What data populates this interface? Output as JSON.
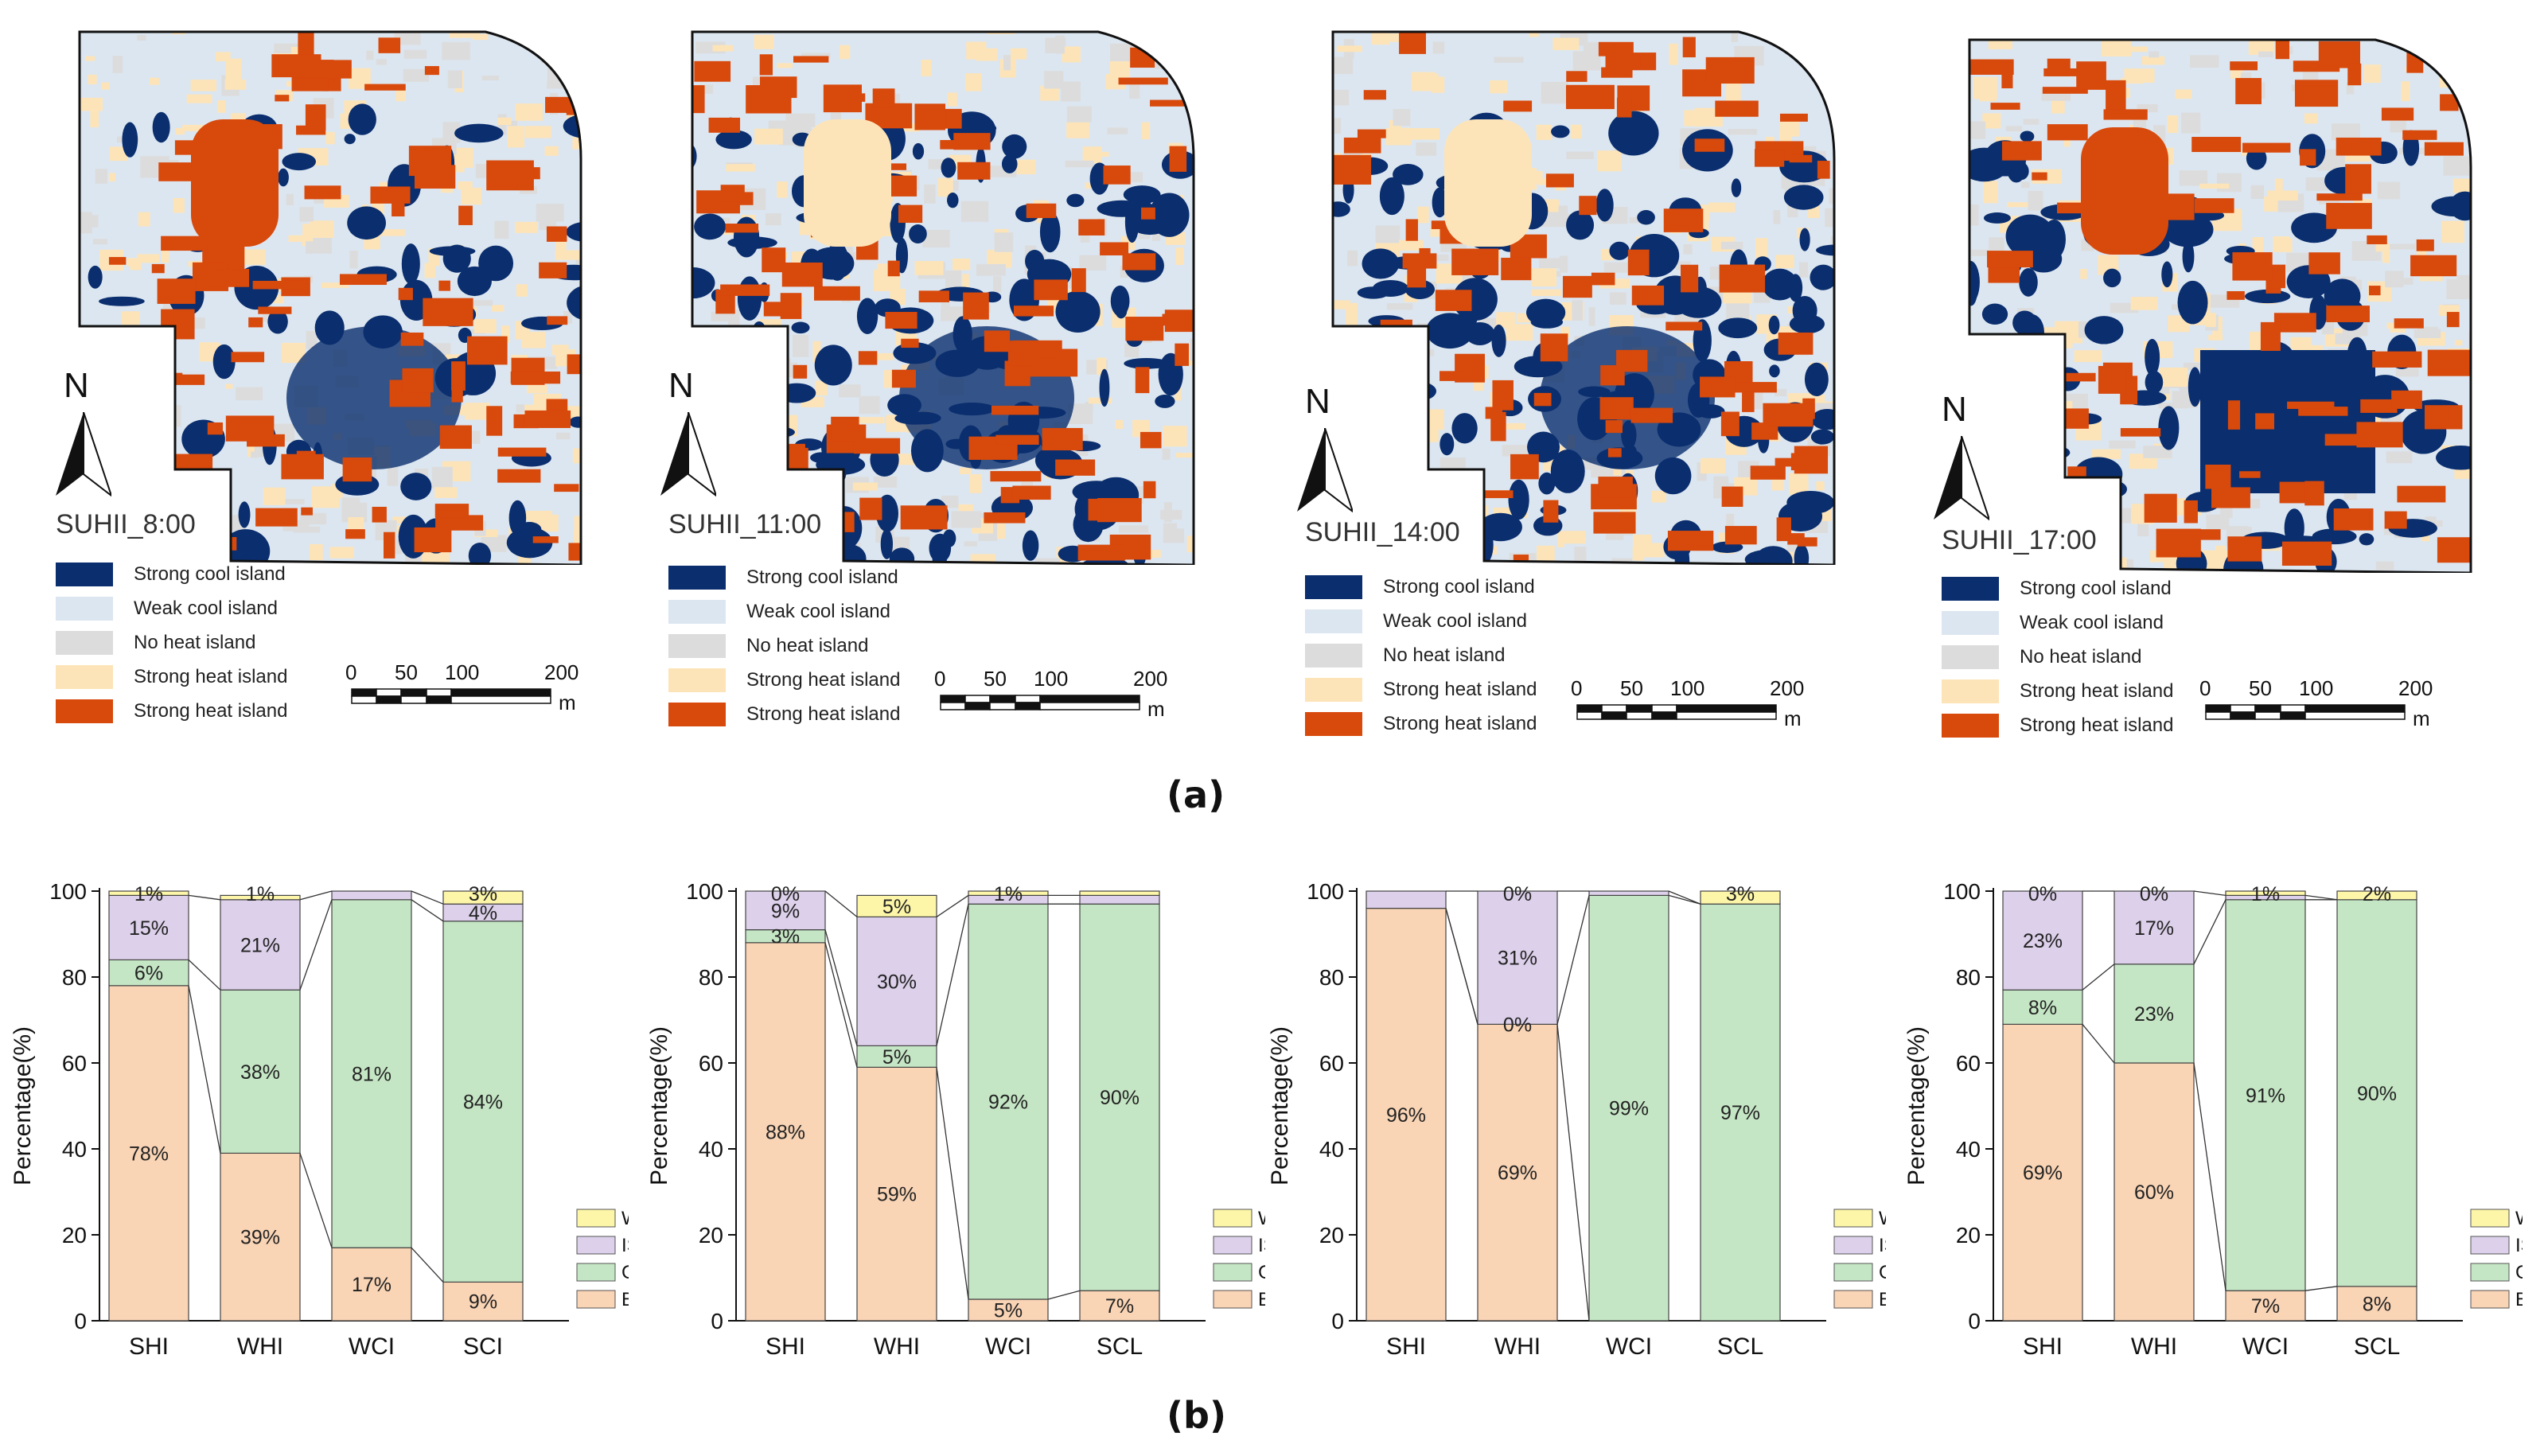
{
  "maps": [
    {
      "id": "m1",
      "title": "SUHII_8:00"
    },
    {
      "id": "m2",
      "title": "SUHII_11:00"
    },
    {
      "id": "m3",
      "title": "SUHII_14:00"
    },
    {
      "id": "m4",
      "title": "SUHII_17:00"
    }
  ],
  "map_legend": [
    {
      "label": "Strong cool island",
      "color": "#0a2e6e"
    },
    {
      "label": "Weak cool island",
      "color": "#dce6f0"
    },
    {
      "label": "No heat island",
      "color": "#dcdcdc"
    },
    {
      "label": "Strong heat island",
      "color": "#fde4b8"
    },
    {
      "label": "Strong heat island",
      "color": "#d8490c"
    }
  ],
  "north_label": "N",
  "scale": {
    "ticks": [
      "0",
      "50",
      "100",
      "200"
    ],
    "unit": "m"
  },
  "caption_a": "(a)",
  "caption_b": "(b)",
  "bar_legend": [
    {
      "label": "WB",
      "color": "#fdf6a8"
    },
    {
      "label": "IS",
      "color": "#dcd0ea"
    },
    {
      "label": "GS",
      "color": "#c5e6c5"
    },
    {
      "label": "BD",
      "color": "#f9d4b5"
    }
  ],
  "chart_data": [
    {
      "type": "bar",
      "stacked": true,
      "categories": [
        "SHI",
        "WHI",
        "WCI",
        "SCI"
      ],
      "ylabel": "Percentage(%)",
      "ylim": [
        0,
        100
      ],
      "yticks": [
        0,
        20,
        40,
        60,
        80,
        100
      ],
      "series": [
        {
          "name": "BD",
          "values": [
            78,
            39,
            17,
            9
          ],
          "labels": [
            "78%",
            "39%",
            "17%",
            "9%"
          ]
        },
        {
          "name": "GS",
          "values": [
            6,
            38,
            81,
            84
          ],
          "labels": [
            "6%",
            "38%",
            "81%",
            "84%"
          ]
        },
        {
          "name": "IS",
          "values": [
            15,
            21,
            2,
            4
          ],
          "labels": [
            "15%",
            "21%",
            "",
            "4%"
          ]
        },
        {
          "name": "WB",
          "values": [
            1,
            1,
            0,
            3
          ],
          "labels": [
            "1%",
            "1%",
            "",
            "3%"
          ]
        }
      ]
    },
    {
      "type": "bar",
      "stacked": true,
      "categories": [
        "SHI",
        "WHI",
        "WCI",
        "SCL"
      ],
      "ylabel": "Percentage(%)",
      "ylim": [
        0,
        100
      ],
      "yticks": [
        0,
        20,
        40,
        60,
        80,
        100
      ],
      "series": [
        {
          "name": "BD",
          "values": [
            88,
            59,
            5,
            7
          ],
          "labels": [
            "88%",
            "59%",
            "5%",
            "7%"
          ]
        },
        {
          "name": "GS",
          "values": [
            3,
            5,
            92,
            90
          ],
          "labels": [
            "3%",
            "5%",
            "92%",
            "90%"
          ]
        },
        {
          "name": "IS",
          "values": [
            9,
            30,
            2,
            2
          ],
          "labels": [
            "9%",
            "30%",
            "",
            ""
          ]
        },
        {
          "name": "WB",
          "values": [
            0,
            5,
            1,
            1
          ],
          "labels": [
            "0%",
            "5%",
            "1%",
            ""
          ]
        }
      ]
    },
    {
      "type": "bar",
      "stacked": true,
      "categories": [
        "SHI",
        "WHI",
        "WCI",
        "SCL"
      ],
      "ylabel": "Percentage(%)",
      "ylim": [
        0,
        100
      ],
      "yticks": [
        0,
        20,
        40,
        60,
        80,
        100
      ],
      "series": [
        {
          "name": "BD",
          "values": [
            96,
            69,
            0,
            0
          ],
          "labels": [
            "96%",
            "69%",
            "",
            ""
          ]
        },
        {
          "name": "GS",
          "values": [
            0,
            0,
            99,
            97
          ],
          "labels": [
            "",
            "0%",
            "99%",
            "97%"
          ]
        },
        {
          "name": "IS",
          "values": [
            4,
            31,
            1,
            0
          ],
          "labels": [
            "",
            "31%",
            "",
            ""
          ]
        },
        {
          "name": "WB",
          "values": [
            0,
            0,
            0,
            3
          ],
          "labels": [
            "",
            "0%",
            "",
            "3%"
          ]
        }
      ]
    },
    {
      "type": "bar",
      "stacked": true,
      "categories": [
        "SHI",
        "WHI",
        "WCI",
        "SCL"
      ],
      "ylabel": "Percentage(%)",
      "ylim": [
        0,
        100
      ],
      "yticks": [
        0,
        20,
        40,
        60,
        80,
        100
      ],
      "series": [
        {
          "name": "BD",
          "values": [
            69,
            60,
            7,
            8
          ],
          "labels": [
            "69%",
            "60%",
            "7%",
            "8%"
          ]
        },
        {
          "name": "GS",
          "values": [
            8,
            23,
            91,
            90
          ],
          "labels": [
            "8%",
            "23%",
            "91%",
            "90%"
          ]
        },
        {
          "name": "IS",
          "values": [
            23,
            17,
            1,
            0
          ],
          "labels": [
            "23%",
            "17%",
            "",
            ""
          ]
        },
        {
          "name": "WB",
          "values": [
            0,
            0,
            1,
            2
          ],
          "labels": [
            "0%",
            "0%",
            "1%",
            "2%"
          ]
        }
      ]
    }
  ]
}
